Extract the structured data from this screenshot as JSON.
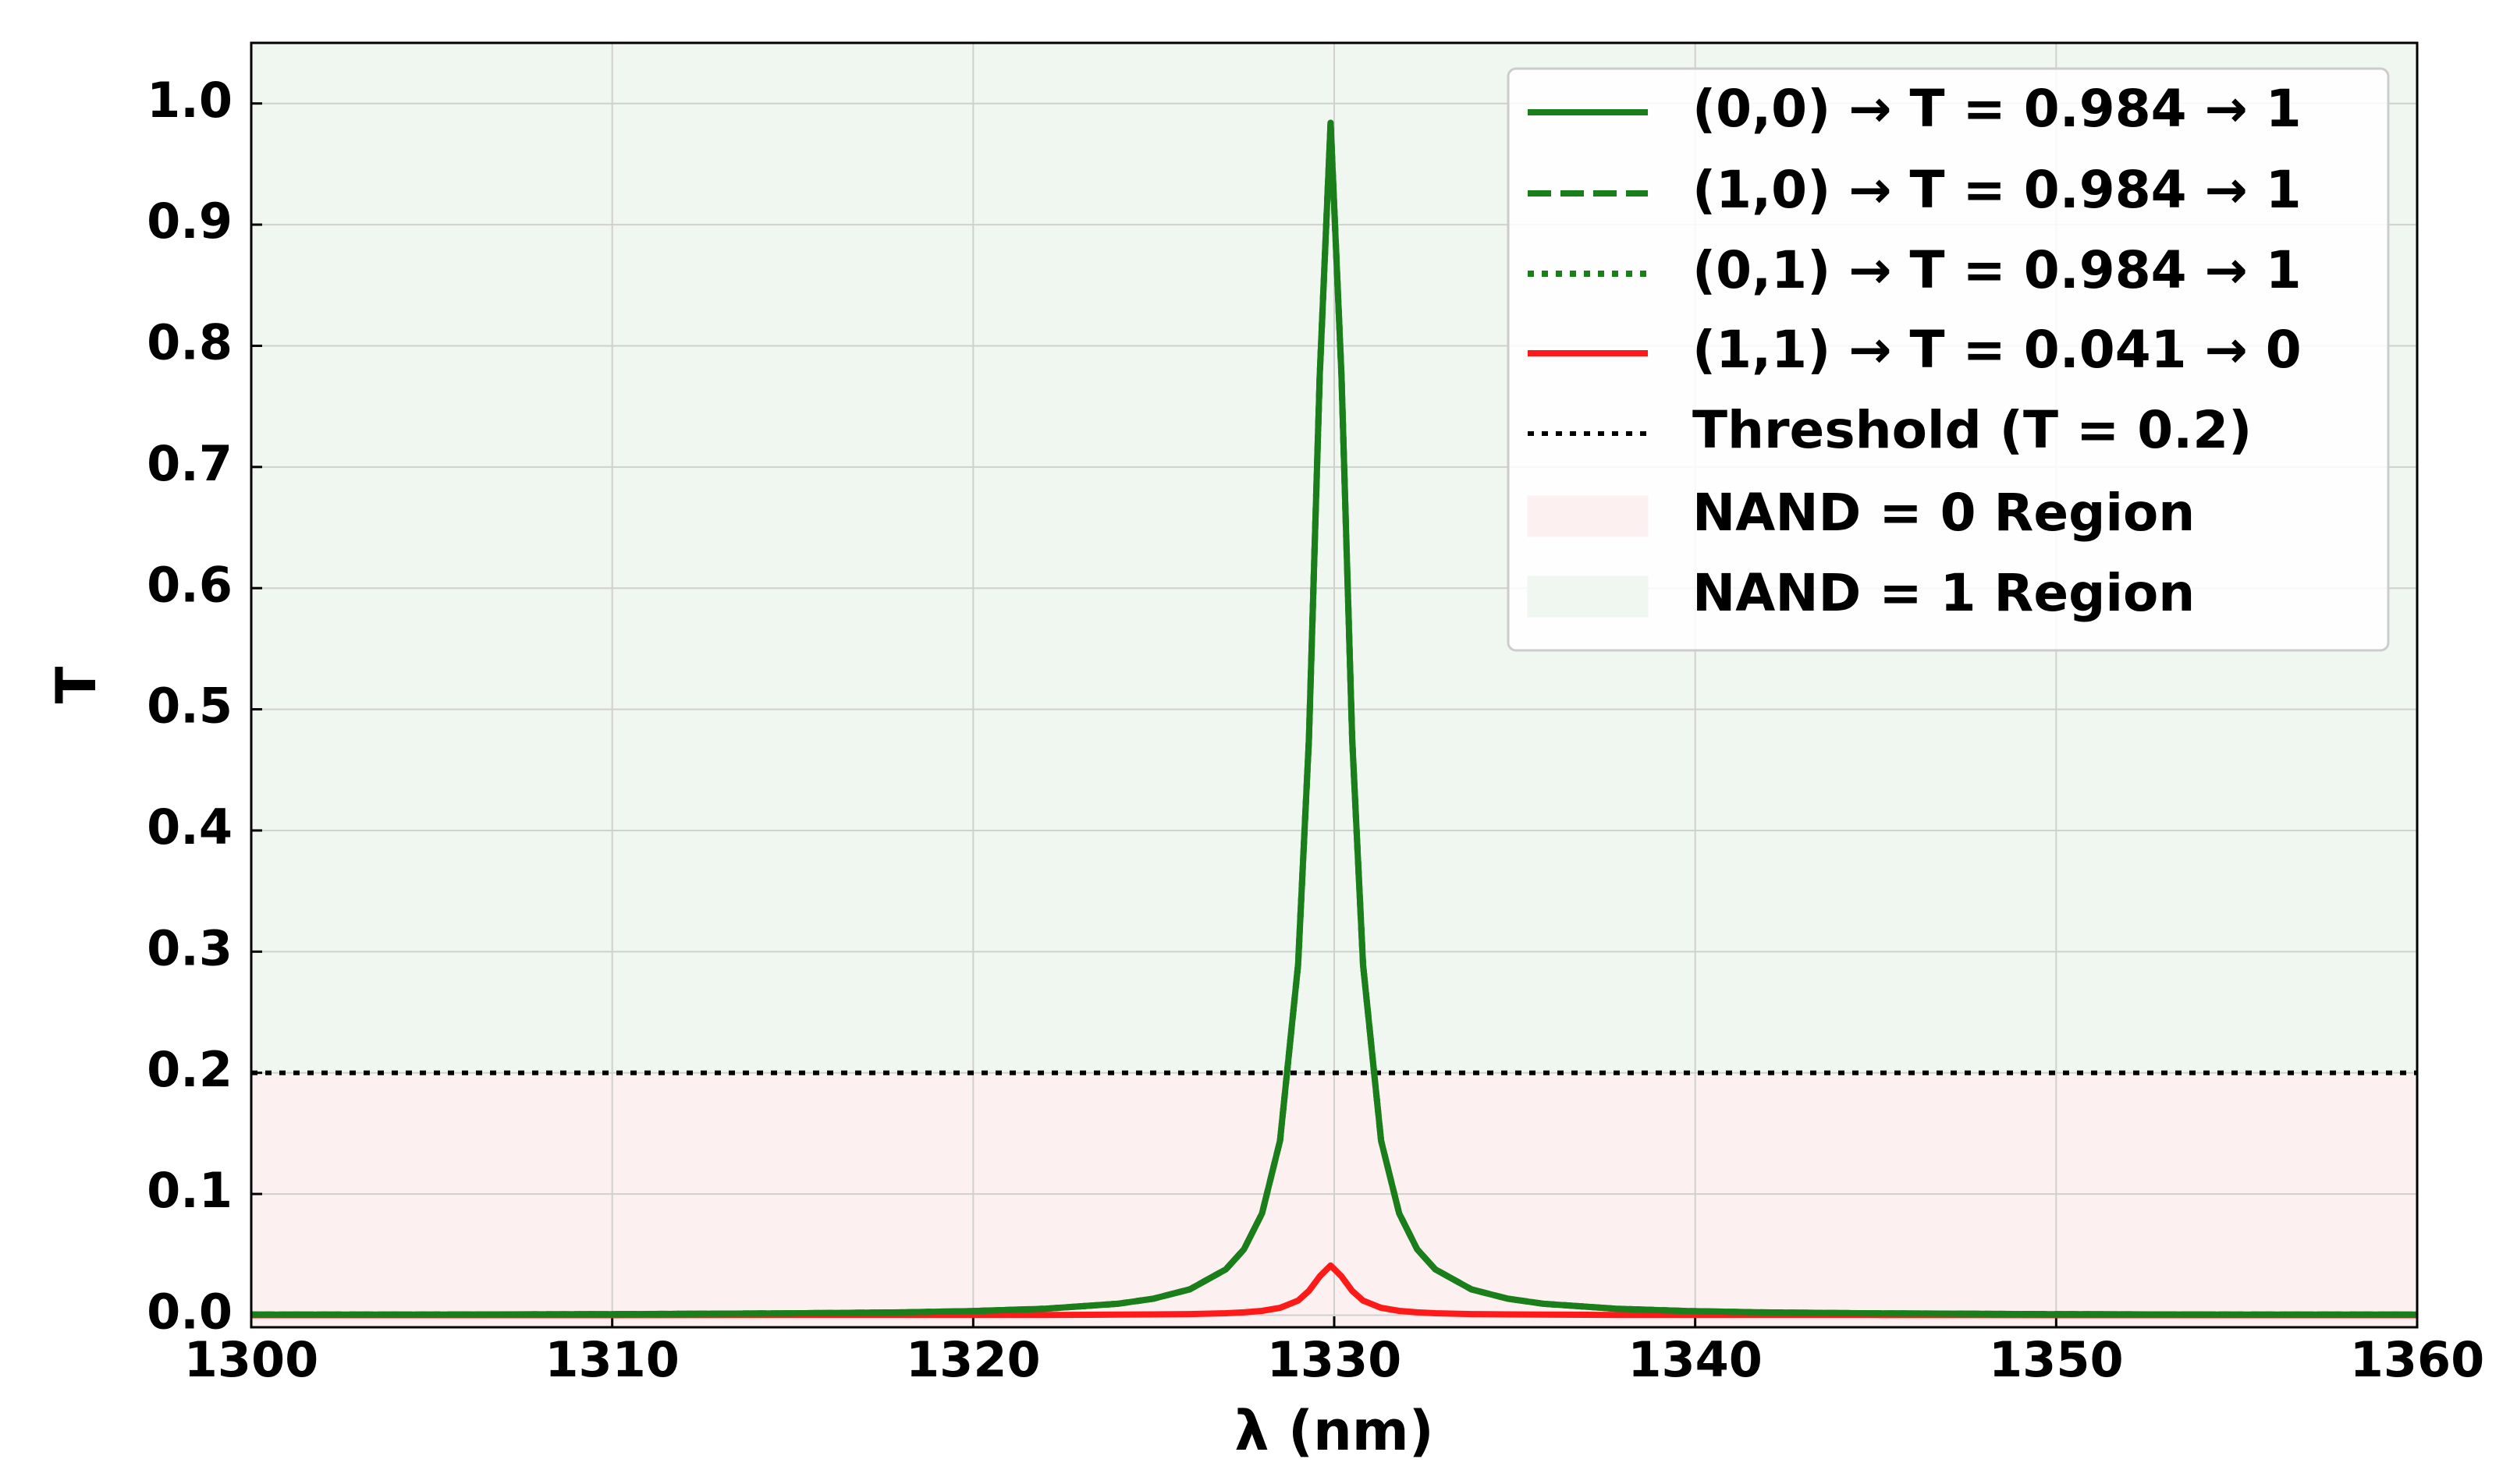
{
  "chart_data": {
    "type": "line",
    "x_label": "λ (nm)",
    "y_label": "T",
    "xlim": [
      1300,
      1360
    ],
    "xticks": [
      1300,
      1310,
      1320,
      1330,
      1340,
      1350,
      1360
    ],
    "ylim": [
      -0.01,
      1.05
    ],
    "yticks": [
      {
        "value": 0,
        "label": "0.0"
      },
      0.1,
      0.2,
      0.3,
      0.4,
      0.5,
      0.6,
      0.7,
      0.8,
      0.9,
      {
        "value": 1,
        "label": "1.0"
      }
    ],
    "grid": true,
    "legend": "upper right",
    "x": [
      1300,
      1305,
      1310,
      1315,
      1318,
      1320,
      1322,
      1324,
      1325,
      1326,
      1327,
      1327.5,
      1328,
      1328.5,
      1329,
      1329.3,
      1329.6,
      1329.9,
      1330.2,
      1330.5,
      1330.8,
      1331.3,
      1331.8,
      1332.3,
      1332.8,
      1333.8,
      1334.8,
      1335.8,
      1337.8,
      1339.8,
      1341.8,
      1344.8,
      1349.8,
      1354.8,
      1360
    ],
    "series": [
      {
        "name": "(0,0) → T = 0.984 → 1",
        "color": "#1a7f1a",
        "linestyle": "solid",
        "values": [
          0.0004,
          0.0005,
          0.0008,
          0.0015,
          0.0023,
          0.0034,
          0.0053,
          0.0094,
          0.0136,
          0.0213,
          0.0378,
          0.0543,
          0.0839,
          0.144,
          0.289,
          0.475,
          0.776,
          0.984,
          0.776,
          0.475,
          0.289,
          0.144,
          0.0839,
          0.0543,
          0.0378,
          0.0213,
          0.0136,
          0.0094,
          0.0053,
          0.0034,
          0.0023,
          0.0015,
          0.0008,
          0.0005,
          0.0004
        ]
      },
      {
        "name": "(1,0) → T = 0.984 → 1",
        "color": "#1a7f1a",
        "linestyle": "dashed",
        "values": [
          0.0004,
          0.0005,
          0.0008,
          0.0015,
          0.0023,
          0.0034,
          0.0053,
          0.0094,
          0.0136,
          0.0213,
          0.0378,
          0.0543,
          0.0839,
          0.144,
          0.289,
          0.475,
          0.776,
          0.984,
          0.776,
          0.475,
          0.289,
          0.144,
          0.0839,
          0.0543,
          0.0378,
          0.0213,
          0.0136,
          0.0094,
          0.0053,
          0.0034,
          0.0023,
          0.0015,
          0.0008,
          0.0005,
          0.0004
        ]
      },
      {
        "name": "(0,1) → T = 0.984 → 1",
        "color": "#1a7f1a",
        "linestyle": "dotted",
        "values": [
          0.0004,
          0.0005,
          0.0008,
          0.0015,
          0.0023,
          0.0034,
          0.0053,
          0.0094,
          0.0136,
          0.0213,
          0.0378,
          0.0543,
          0.0839,
          0.144,
          0.289,
          0.475,
          0.776,
          0.984,
          0.776,
          0.475,
          0.289,
          0.144,
          0.0839,
          0.0543,
          0.0378,
          0.0213,
          0.0136,
          0.0094,
          0.0053,
          0.0034,
          0.0023,
          0.0015,
          0.0008,
          0.0005,
          0.0004
        ]
      },
      {
        "name": "(1,1) → T = 0.041 → 0",
        "color": "#ff1a1a",
        "linestyle": "solid",
        "values": [
          0,
          0,
          0,
          0.0001,
          0.0001,
          0.0001,
          0.0002,
          0.0004,
          0.0006,
          0.0009,
          0.0016,
          0.0023,
          0.0035,
          0.006,
          0.012,
          0.02,
          0.032,
          0.041,
          0.032,
          0.02,
          0.012,
          0.006,
          0.0035,
          0.0023,
          0.0016,
          0.0009,
          0.0006,
          0.0004,
          0.0002,
          0.0001,
          0.0001,
          0.0001,
          0,
          0,
          0
        ]
      }
    ],
    "threshold": {
      "name": "Threshold (T = 0.2)",
      "value": 0.2,
      "color": "#000000",
      "linestyle": "dotted"
    },
    "regions": [
      {
        "name": "NAND = 0 Region",
        "color": "#fdf0f0"
      },
      {
        "name": "NAND = 1 Region",
        "color": "#f0f7f0"
      }
    ]
  }
}
